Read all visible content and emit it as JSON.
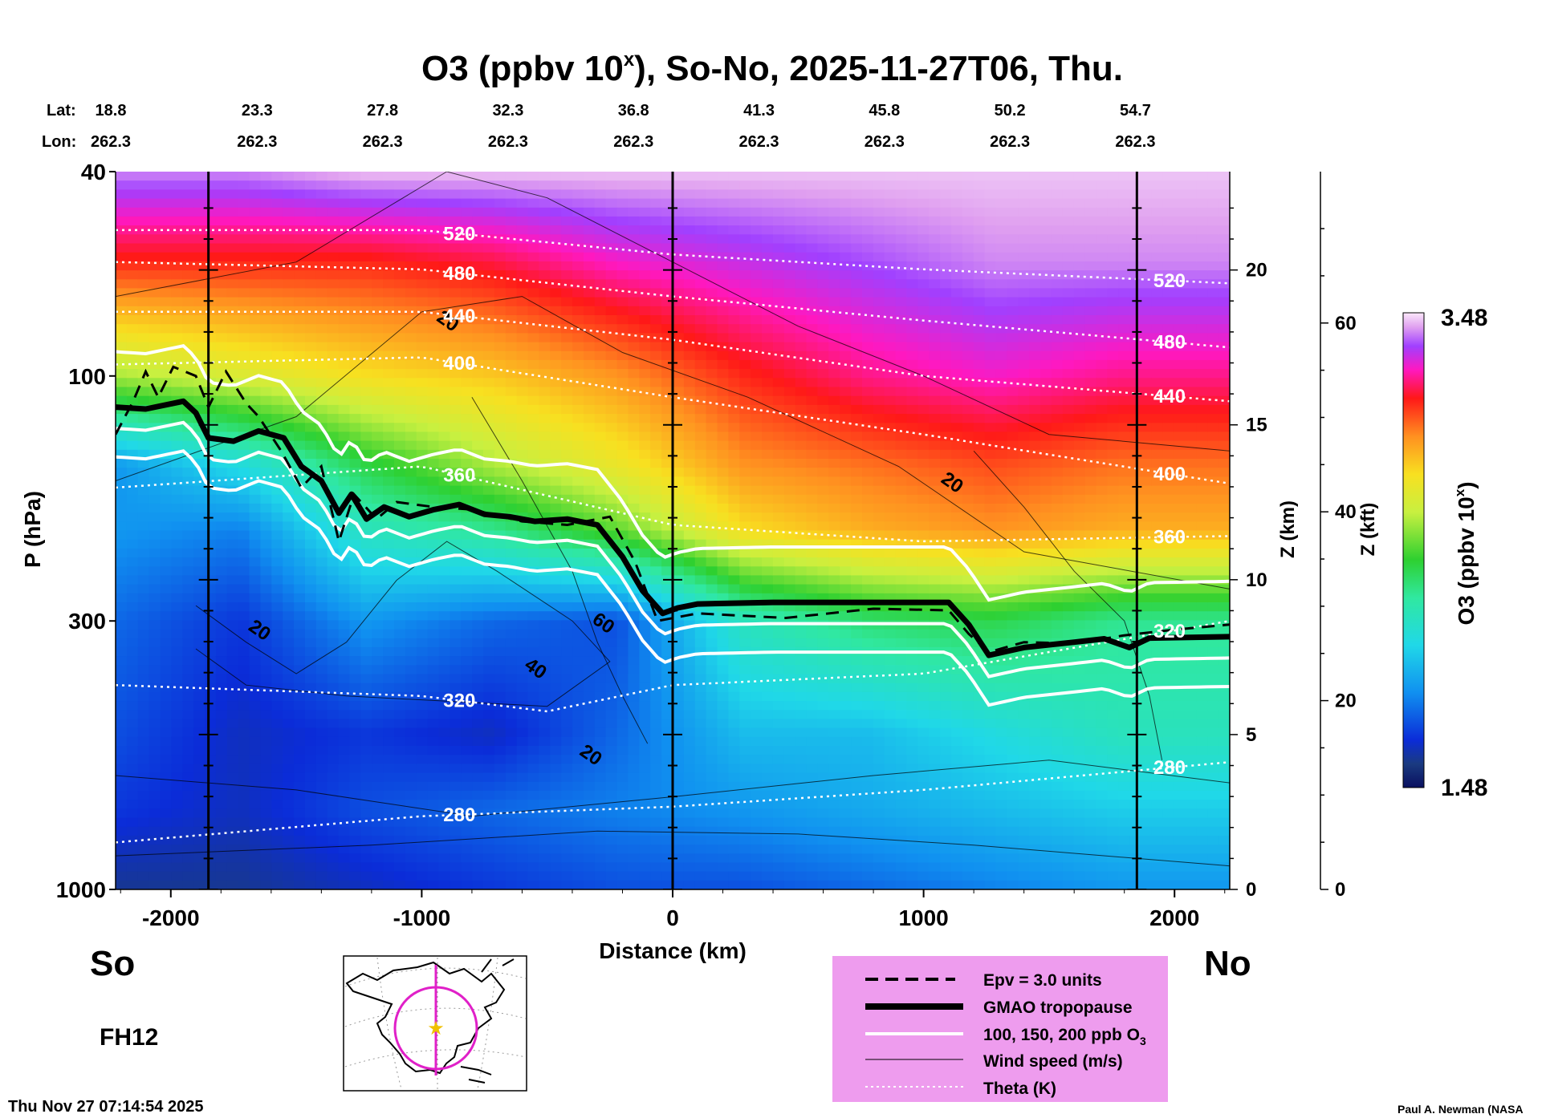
{
  "chart_data": {
    "type": "heatmap",
    "title": "O3 (ppbv 10",
    "title_sup": "x",
    "title_rest": "), So-No, 2025-11-27T06, Thu.",
    "xlabel": "Distance (km)",
    "ylabel": "P (hPa)",
    "zlabel_km": "Z (km)",
    "zlabel_kft": "Z (kft)",
    "colorbar_label": "O3 (ppbv 10",
    "colorbar_label_sup": "x",
    "colorbar_label_end": ")",
    "colorbar_range": [
      1.48,
      3.48
    ],
    "colorbar_max_label": "3.48",
    "colorbar_min_label": "1.48",
    "xlim": [
      -2220,
      2220
    ],
    "ylim_hpa": [
      1000,
      40
    ],
    "y_scale": "log",
    "x_ticks": [
      {
        "v": -2000,
        "label": "-2000"
      },
      {
        "v": -1000,
        "label": "-1000"
      },
      {
        "v": 0,
        "label": "0"
      },
      {
        "v": 1000,
        "label": "1000"
      },
      {
        "v": 2000,
        "label": "2000"
      }
    ],
    "p_ticks": [
      {
        "v": 40,
        "label": "40"
      },
      {
        "v": 100,
        "label": "100"
      },
      {
        "v": 300,
        "label": "300"
      },
      {
        "v": 1000,
        "label": "1000"
      }
    ],
    "z_km_ticks": [
      {
        "v": 0,
        "label": "0"
      },
      {
        "v": 5,
        "label": "5"
      },
      {
        "v": 10,
        "label": "10"
      },
      {
        "v": 15,
        "label": "15"
      },
      {
        "v": 20,
        "label": "20"
      }
    ],
    "z_kft_ticks": [
      {
        "v": 0,
        "label": "0"
      },
      {
        "v": 20,
        "label": "20"
      },
      {
        "v": 40,
        "label": "40"
      },
      {
        "v": 60,
        "label": "60"
      }
    ],
    "lat_label": "Lat:",
    "lon_label": "Lon:",
    "stations": [
      {
        "d": -2220,
        "lat": "18.8",
        "lon": "262.3"
      },
      {
        "d": -1720,
        "lat": "23.3",
        "lon": "262.3"
      },
      {
        "d": -1220,
        "lat": "27.8",
        "lon": "262.3"
      },
      {
        "d": -720,
        "lat": "32.3",
        "lon": "262.3"
      },
      {
        "d": -220,
        "lat": "36.8",
        "lon": "262.3"
      },
      {
        "d": 280,
        "lat": "41.3",
        "lon": "262.3"
      },
      {
        "d": 780,
        "lat": "45.8",
        "lon": "262.3"
      },
      {
        "d": 1280,
        "lat": "50.2",
        "lon": "262.3"
      },
      {
        "d": 1780,
        "lat": "54.7",
        "lon": "262.3"
      }
    ],
    "vertical_markers_km": [
      -1850,
      0,
      1850
    ],
    "tropopause_hpa": [
      [
        -2220,
        115
      ],
      [
        -2100,
        116
      ],
      [
        -1950,
        112
      ],
      [
        -1900,
        118
      ],
      [
        -1850,
        132
      ],
      [
        -1750,
        134
      ],
      [
        -1650,
        128
      ],
      [
        -1550,
        132
      ],
      [
        -1480,
        150
      ],
      [
        -1400,
        160
      ],
      [
        -1330,
        185
      ],
      [
        -1280,
        170
      ],
      [
        -1220,
        190
      ],
      [
        -1150,
        180
      ],
      [
        -1050,
        188
      ],
      [
        -950,
        182
      ],
      [
        -850,
        178
      ],
      [
        -750,
        186
      ],
      [
        -650,
        188
      ],
      [
        -550,
        192
      ],
      [
        -420,
        190
      ],
      [
        -300,
        195
      ],
      [
        -200,
        225
      ],
      [
        -120,
        262
      ],
      [
        -40,
        290
      ],
      [
        20,
        283
      ],
      [
        100,
        278
      ],
      [
        400,
        276
      ],
      [
        800,
        276
      ],
      [
        1100,
        276
      ],
      [
        1180,
        305
      ],
      [
        1260,
        350
      ],
      [
        1400,
        338
      ],
      [
        1600,
        330
      ],
      [
        1720,
        325
      ],
      [
        1820,
        338
      ],
      [
        1900,
        324
      ],
      [
        2220,
        322
      ]
    ],
    "epv_contour_hpa": [
      [
        -2220,
        130
      ],
      [
        -2150,
        112
      ],
      [
        -2100,
        98
      ],
      [
        -2050,
        110
      ],
      [
        -1990,
        96
      ],
      [
        -1900,
        100
      ],
      [
        -1850,
        115
      ],
      [
        -1780,
        98
      ],
      [
        -1700,
        113
      ],
      [
        -1650,
        120
      ],
      [
        -1560,
        140
      ],
      [
        -1480,
        165
      ],
      [
        -1400,
        150
      ],
      [
        -1330,
        210
      ],
      [
        -1270,
        170
      ],
      [
        -1180,
        190
      ],
      [
        -1100,
        176
      ],
      [
        -950,
        180
      ],
      [
        -800,
        182
      ],
      [
        -600,
        192
      ],
      [
        -420,
        195
      ],
      [
        -250,
        188
      ],
      [
        -150,
        230
      ],
      [
        -60,
        300
      ],
      [
        100,
        290
      ],
      [
        450,
        296
      ],
      [
        800,
        284
      ],
      [
        1100,
        286
      ],
      [
        1180,
        318
      ],
      [
        1260,
        345
      ],
      [
        1400,
        330
      ],
      [
        1600,
        332
      ],
      [
        1800,
        320
      ],
      [
        2000,
        312
      ],
      [
        2220,
        305
      ]
    ],
    "theta_levels": [
      {
        "label": "280",
        "p_at": [
          [
            -2220,
            810
          ],
          [
            -1000,
            720
          ],
          [
            0,
            690
          ],
          [
            1000,
            640
          ],
          [
            2220,
            565
          ]
        ]
      },
      {
        "label": "320",
        "p_at": [
          [
            -2220,
            400
          ],
          [
            -1000,
            420
          ],
          [
            -500,
            450
          ],
          [
            0,
            400
          ],
          [
            1000,
            380
          ],
          [
            2220,
            300
          ]
        ]
      },
      {
        "label": "360",
        "p_at": [
          [
            -2220,
            165
          ],
          [
            -1000,
            150
          ],
          [
            0,
            195
          ],
          [
            1000,
            210
          ],
          [
            2220,
            205
          ]
        ]
      },
      {
        "label": "400",
        "p_at": [
          [
            -2220,
            95
          ],
          [
            -1000,
            92
          ],
          [
            0,
            110
          ],
          [
            1000,
            130
          ],
          [
            2220,
            162
          ]
        ]
      },
      {
        "label": "440",
        "p_at": [
          [
            -2220,
            75
          ],
          [
            -1000,
            75
          ],
          [
            0,
            85
          ],
          [
            1000,
            100
          ],
          [
            2220,
            112
          ]
        ]
      },
      {
        "label": "480",
        "p_at": [
          [
            -2220,
            60
          ],
          [
            -1000,
            62
          ],
          [
            0,
            70
          ],
          [
            1000,
            78
          ],
          [
            2220,
            88
          ]
        ]
      },
      {
        "label": "520",
        "p_at": [
          [
            -2220,
            52
          ],
          [
            -1000,
            52
          ],
          [
            0,
            58
          ],
          [
            1000,
            62
          ],
          [
            2220,
            66
          ]
        ]
      }
    ],
    "ozone_field_log10": [
      {
        "p": 40,
        "values": [
          3.4,
          3.4,
          3.45,
          3.45,
          3.45,
          3.45,
          3.45,
          3.45,
          3.45
        ]
      },
      {
        "p": 60,
        "values": [
          3.1,
          3.1,
          3.1,
          3.15,
          3.25,
          3.3,
          3.35,
          3.4,
          3.4
        ]
      },
      {
        "p": 100,
        "values": [
          2.6,
          2.7,
          2.8,
          2.85,
          2.95,
          3.1,
          3.2,
          3.25,
          3.2
        ]
      },
      {
        "p": 150,
        "values": [
          1.9,
          2.1,
          2.4,
          2.6,
          2.75,
          2.95,
          3.0,
          3.05,
          3.0
        ]
      },
      {
        "p": 200,
        "values": [
          1.9,
          1.85,
          2.2,
          2.3,
          2.5,
          2.8,
          2.9,
          2.95,
          2.9
        ]
      },
      {
        "p": 300,
        "values": [
          1.8,
          1.7,
          1.9,
          1.8,
          1.75,
          2.2,
          2.35,
          2.4,
          2.3
        ]
      },
      {
        "p": 500,
        "values": [
          1.75,
          1.65,
          1.7,
          1.65,
          1.8,
          2.0,
          2.0,
          2.1,
          2.2
        ]
      },
      {
        "p": 700,
        "values": [
          1.7,
          1.65,
          1.75,
          1.8,
          1.85,
          1.9,
          1.95,
          2.0,
          2.05
        ]
      },
      {
        "p": 1000,
        "values": [
          1.6,
          1.6,
          1.65,
          1.7,
          1.75,
          1.75,
          1.8,
          1.85,
          1.9
        ]
      }
    ],
    "ozone_field_x": [
      -2220,
      -1720,
      -1220,
      -720,
      -220,
      280,
      780,
      1280,
      1780
    ]
  },
  "labels": {
    "south": "So",
    "north": "No",
    "forecast_hour": "FH12",
    "timestamp": "Thu Nov 27 07:14:54 2025",
    "credit": "Paul A. Newman (NASA"
  },
  "legend": {
    "items": [
      {
        "label": "Epv = 3.0 units",
        "style": "dashed"
      },
      {
        "label": "GMAO tropopause",
        "style": "thick"
      },
      {
        "label": "100, 150, 200 ppb O",
        "sub": "3",
        "style": "white"
      },
      {
        "label": "Wind speed (m/s)",
        "style": "thin"
      },
      {
        "label": "Theta (K)",
        "style": "dotted"
      }
    ]
  },
  "colors": {
    "legend_bg": "#ee9cee",
    "map_track": "#e020c8",
    "map_star": "#f0c000"
  },
  "wind_labels": [
    {
      "text": "20",
      "d": -910,
      "p": 80
    },
    {
      "text": "20",
      "d": -1660,
      "p": 320
    },
    {
      "text": "40",
      "d": -560,
      "p": 380
    },
    {
      "text": "60",
      "d": -290,
      "p": 310
    },
    {
      "text": "20",
      "d": -340,
      "p": 560
    },
    {
      "text": "20",
      "d": 1100,
      "p": 165
    }
  ]
}
